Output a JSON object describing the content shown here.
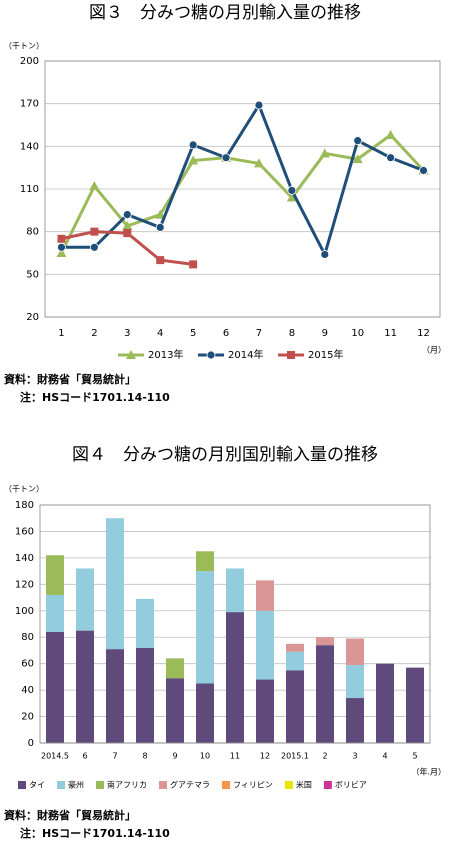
{
  "chart_data": [
    {
      "type": "line",
      "title": "図３　分みつ糖の月別輸入量の推移",
      "y_unit_label": "（千トン）",
      "x_unit_label": "（月）",
      "categories": [
        "1",
        "2",
        "3",
        "4",
        "5",
        "6",
        "7",
        "8",
        "9",
        "10",
        "11",
        "12"
      ],
      "series": [
        {
          "name": "2013年",
          "color": "#9bbb59",
          "marker": "triangle",
          "values": [
            65,
            112,
            84,
            92,
            130,
            132,
            128,
            104,
            135,
            131,
            148,
            123
          ]
        },
        {
          "name": "2014年",
          "color": "#1f4e79",
          "marker": "circle",
          "values": [
            69,
            69,
            92,
            83,
            141,
            132,
            169,
            109,
            64,
            144,
            132,
            123
          ]
        },
        {
          "name": "2015年",
          "color": "#c0504d",
          "marker": "square",
          "values": [
            75,
            80,
            79,
            60,
            57,
            null,
            null,
            null,
            null,
            null,
            null,
            null
          ]
        }
      ],
      "ylim": [
        20,
        200
      ],
      "yticks": [
        20,
        50,
        80,
        110,
        140,
        170,
        200
      ],
      "grid": true,
      "notes": [
        "資料：財務省「貿易統計」",
        "注：HSコード1701.14-110"
      ]
    },
    {
      "type": "stacked_bar",
      "title": "図４　分みつ糖の月別国別輸入量の推移",
      "y_unit_label": "（千トン）",
      "x_unit_label": "（年.月）",
      "categories": [
        "2014.5",
        "6",
        "7",
        "8",
        "9",
        "10",
        "11",
        "12",
        "2015.1",
        "2",
        "3",
        "4",
        "5"
      ],
      "series": [
        {
          "name": "タイ",
          "color": "#604a7b",
          "values": [
            84,
            85,
            71,
            72,
            49,
            45,
            99,
            48,
            55,
            74,
            34,
            60,
            57
          ]
        },
        {
          "name": "豪州",
          "color": "#93cddd",
          "values": [
            28,
            47,
            99,
            37,
            0,
            85,
            33,
            52,
            14,
            0,
            25,
            0,
            0
          ]
        },
        {
          "name": "南アフリカ",
          "color": "#9bbb59",
          "values": [
            30,
            0,
            0,
            0,
            15,
            15,
            0,
            0,
            0,
            0,
            0,
            0,
            0
          ]
        },
        {
          "name": "グアテマラ",
          "color": "#d99694",
          "values": [
            0,
            0,
            0,
            0,
            0,
            0,
            0,
            23,
            6,
            6,
            20,
            0,
            0
          ]
        },
        {
          "name": "フィリピン",
          "color": "#f79646",
          "values": [
            0,
            0,
            0,
            0,
            0,
            0,
            0,
            0,
            0,
            0,
            0,
            0,
            0
          ]
        },
        {
          "name": "米国",
          "color": "#e6e600",
          "values": [
            0,
            0,
            0,
            0,
            0,
            0,
            0,
            0,
            0,
            0,
            0,
            0,
            0
          ]
        },
        {
          "name": "ボリビア",
          "color": "#cc3399",
          "values": [
            0,
            0,
            0,
            0,
            0,
            0,
            0,
            0,
            0,
            0,
            0,
            0,
            0
          ]
        }
      ],
      "ylim": [
        0,
        180
      ],
      "yticks": [
        0,
        20,
        40,
        60,
        80,
        100,
        120,
        140,
        160,
        180
      ],
      "grid": true,
      "notes": [
        "資料：財務省「貿易統計」",
        "注：HSコード1701.14-110"
      ]
    }
  ]
}
